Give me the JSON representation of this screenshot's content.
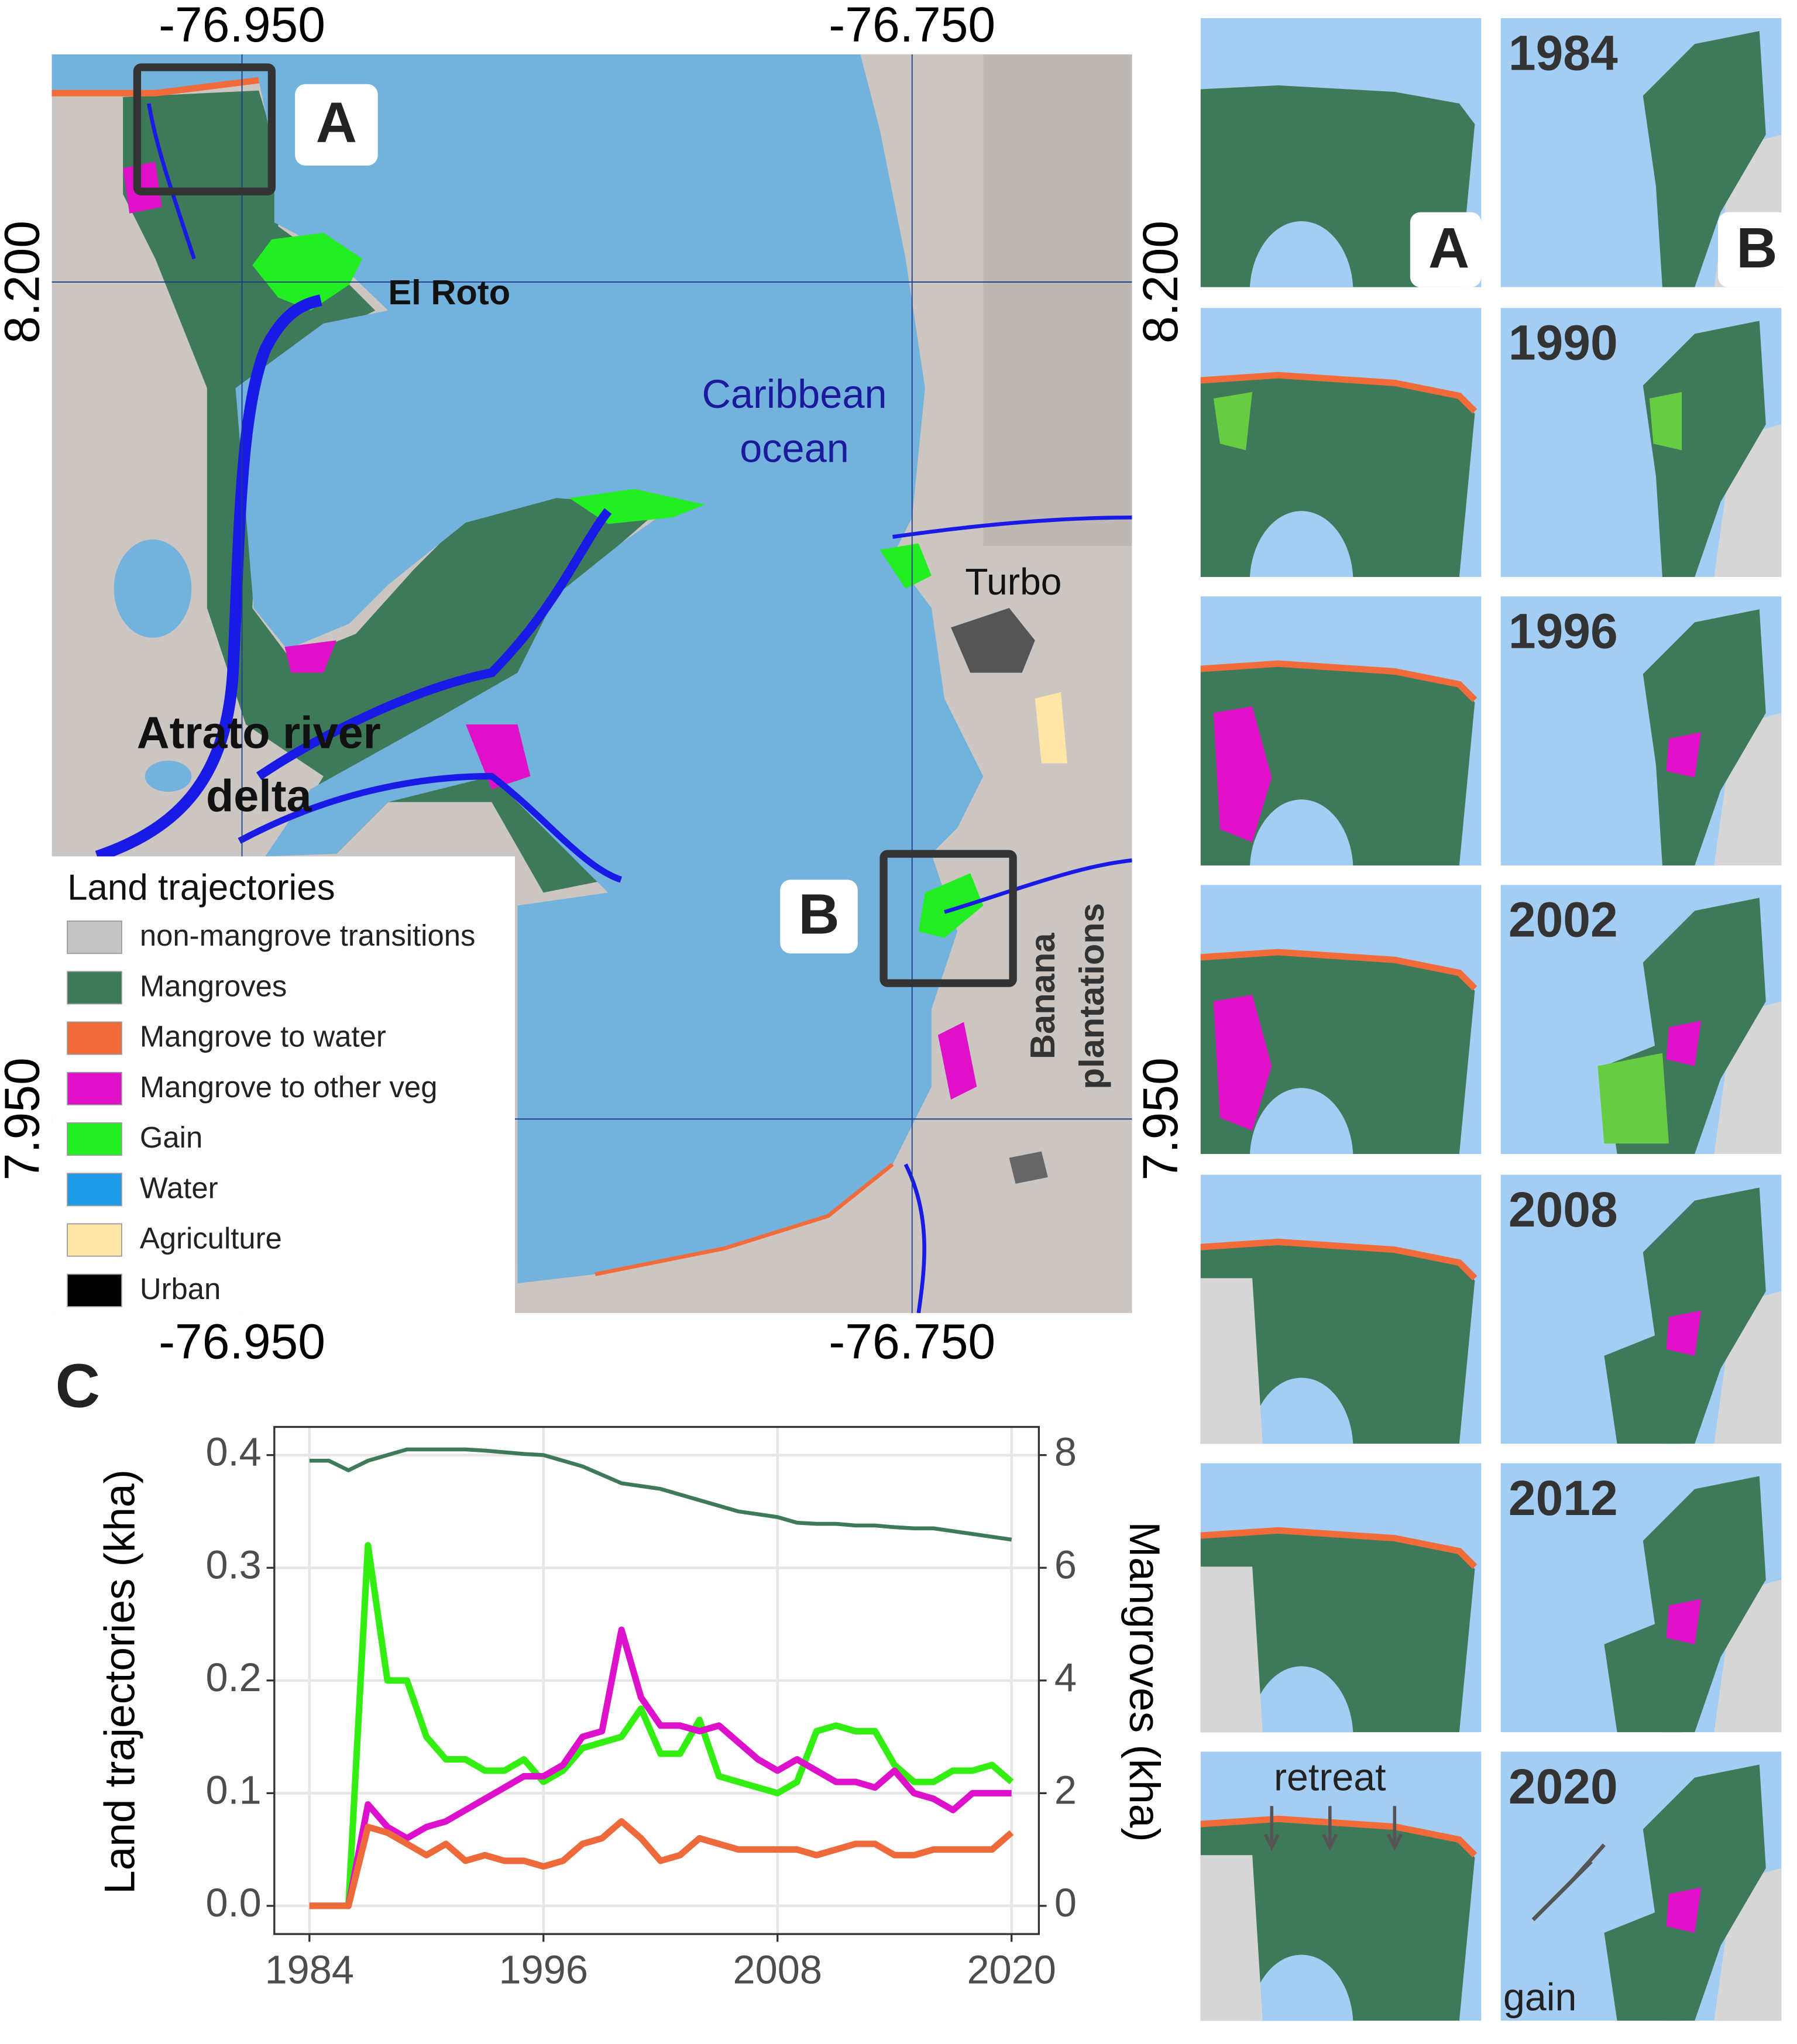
{
  "map": {
    "lon_labels": [
      "-76.950",
      "-76.750"
    ],
    "lat_labels": [
      "8.200",
      "7.950"
    ],
    "places": {
      "el_roto": "El Roto",
      "ocean": [
        "Caribbean",
        "ocean"
      ],
      "turbo": "Turbo",
      "delta": [
        "Atrato river",
        "delta"
      ],
      "banana": [
        "Banana",
        "plantations"
      ]
    },
    "insets": [
      "A",
      "B"
    ],
    "legend": {
      "title": "Land trajectories",
      "items": [
        {
          "label": "non-mangrove transitions",
          "color": "#c4c4c4"
        },
        {
          "label": "Mangroves",
          "color": "#3e7a5a"
        },
        {
          "label": "Mangrove to water",
          "color": "#f26b3a"
        },
        {
          "label": "Mangrove to other veg",
          "color": "#e010c8"
        },
        {
          "label": "Gain",
          "color": "#22ee22"
        },
        {
          "label": "Water",
          "color": "#1e9be8"
        },
        {
          "label": "Agriculture",
          "color": "#fde6a6"
        },
        {
          "label": "Urban",
          "color": "#000000"
        }
      ]
    }
  },
  "thumbnails": {
    "columns": [
      "A",
      "B"
    ],
    "years": [
      "1984",
      "1990",
      "1996",
      "2002",
      "2008",
      "2012",
      "2020"
    ],
    "annotations": {
      "retreat": "retreat",
      "gain": "gain"
    }
  },
  "chart_data": {
    "type": "line",
    "panel_label": "C",
    "y_label": "Land trajectories (kha)",
    "y2_label": "Mangroves (kha)",
    "x": [
      1984,
      1985,
      1986,
      1987,
      1988,
      1989,
      1990,
      1991,
      1992,
      1993,
      1994,
      1995,
      1996,
      1997,
      1998,
      1999,
      2000,
      2001,
      2002,
      2003,
      2004,
      2005,
      2006,
      2007,
      2008,
      2009,
      2010,
      2011,
      2012,
      2013,
      2014,
      2015,
      2016,
      2017,
      2018,
      2019,
      2020
    ],
    "xlim": [
      1982.2,
      2021.4
    ],
    "xticks": [
      1984,
      1996,
      2008,
      2020
    ],
    "ylim": [
      -0.025,
      0.425
    ],
    "yticks": [
      {
        "value": 0,
        "label": "0.0"
      },
      0.1,
      0.2,
      0.3,
      0.4
    ],
    "y2lim": [
      -0.5,
      8.5
    ],
    "y2ticks": [
      0,
      2,
      4,
      6,
      8
    ],
    "grid": true,
    "series": [
      {
        "color": "#33ee11",
        "values": [
          0,
          0,
          0,
          0.32,
          0.2,
          0.2,
          0.15,
          0.13,
          0.13,
          0.12,
          0.12,
          0.13,
          0.11,
          0.12,
          0.14,
          0.145,
          0.15,
          0.175,
          0.135,
          0.135,
          0.165,
          0.115,
          0.11,
          0.105,
          0.1,
          0.11,
          0.155,
          0.16,
          0.155,
          0.155,
          0.125,
          0.11,
          0.11,
          0.12,
          0.12,
          0.125,
          0.11
        ]
      },
      {
        "color": "#dd11cc",
        "values": [
          0,
          0,
          0,
          0.09,
          0.07,
          0.06,
          0.07,
          0.075,
          0.085,
          0.095,
          0.105,
          0.115,
          0.115,
          0.125,
          0.15,
          0.155,
          0.245,
          0.185,
          0.16,
          0.16,
          0.155,
          0.16,
          0.145,
          0.13,
          0.12,
          0.13,
          0.12,
          0.11,
          0.11,
          0.105,
          0.12,
          0.1,
          0.095,
          0.085,
          0.1,
          0.1,
          0.1
        ]
      },
      {
        "color": "#ee6a3a",
        "values": [
          0,
          0,
          0,
          0.07,
          0.065,
          0.055,
          0.045,
          0.055,
          0.04,
          0.045,
          0.04,
          0.04,
          0.035,
          0.04,
          0.055,
          0.06,
          0.075,
          0.06,
          0.04,
          0.045,
          0.06,
          0.055,
          0.05,
          0.05,
          0.05,
          0.05,
          0.045,
          0.05,
          0.055,
          0.055,
          0.045,
          0.045,
          0.05,
          0.05,
          0.05,
          0.05,
          0.065
        ]
      },
      {
        "color": "#3e7a5a",
        "axis": "y2",
        "values": [
          7.9,
          7.9,
          7.73,
          7.9,
          8.0,
          8.1,
          8.1,
          8.1,
          8.1,
          8.08,
          8.05,
          8.02,
          8.0,
          7.9,
          7.8,
          7.65,
          7.5,
          7.45,
          7.4,
          7.3,
          7.2,
          7.1,
          7.0,
          6.95,
          6.9,
          6.8,
          6.78,
          6.78,
          6.75,
          6.75,
          6.72,
          6.7,
          6.7,
          6.65,
          6.6,
          6.55,
          6.5
        ]
      }
    ]
  }
}
